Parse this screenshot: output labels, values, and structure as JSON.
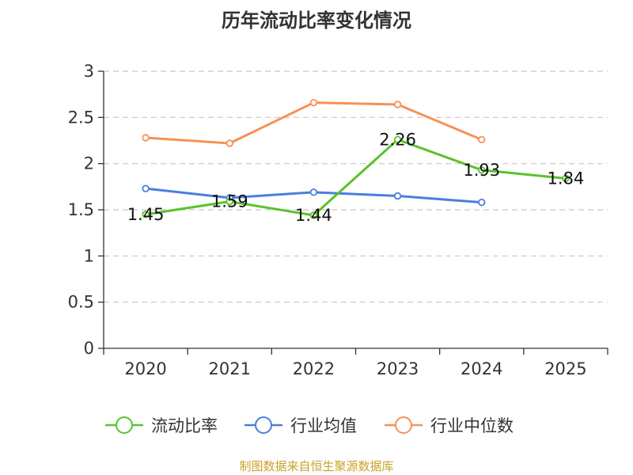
{
  "chart_data": {
    "type": "line",
    "title": "历年流动比率变化情况",
    "categories": [
      "2020",
      "2021",
      "2022",
      "2023",
      "2024",
      "2025"
    ],
    "ylim": [
      0,
      3
    ],
    "yticks": [
      "0",
      "0.5",
      "1",
      "1.5",
      "2",
      "2.5",
      "3"
    ],
    "ytick_values": [
      0,
      0.5,
      1,
      1.5,
      2,
      2.5,
      3
    ],
    "grid": true,
    "legend_position": "bottom",
    "series": [
      {
        "name": "流动比率",
        "color": "#5bc22a",
        "values": [
          1.45,
          1.59,
          1.44,
          2.26,
          1.93,
          1.84
        ],
        "labels": [
          "1.45",
          "1.59",
          "1.44",
          "2.26",
          "1.93",
          "1.84"
        ]
      },
      {
        "name": "行业均值",
        "color": "#4a7fdc",
        "values": [
          1.73,
          1.63,
          1.69,
          1.65,
          1.58,
          null
        ]
      },
      {
        "name": "行业中位数",
        "color": "#f79155",
        "values": [
          2.28,
          2.22,
          2.66,
          2.64,
          2.26,
          null
        ]
      }
    ],
    "source": "制图数据来自恒生聚源数据库"
  }
}
